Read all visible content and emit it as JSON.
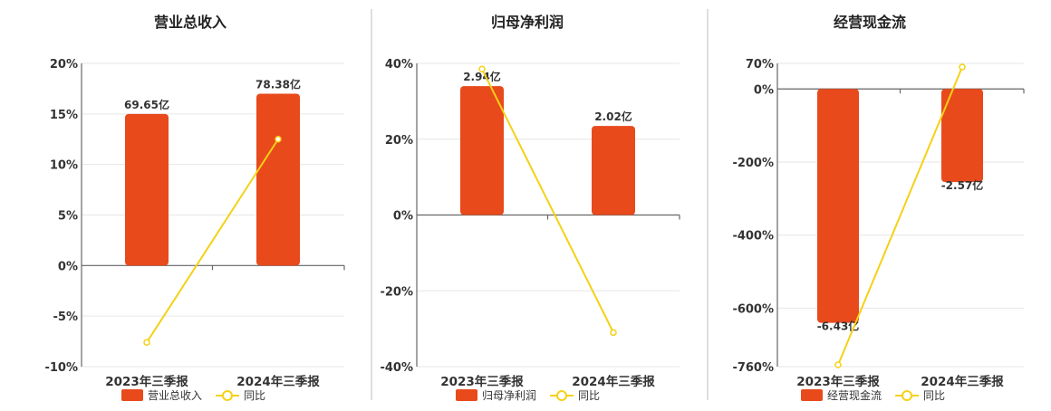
{
  "colors": {
    "bar": "#e84a1c",
    "line": "#f5d116",
    "line_marker_fill": "#ffffff"
  },
  "chart_data": [
    {
      "type": "bar",
      "title": "营业总收入",
      "categories": [
        "2023年三季报",
        "2024年三季报"
      ],
      "y_ticks": [
        "20%",
        "15%",
        "10%",
        "5%",
        "0%",
        "-5%",
        "-10%"
      ],
      "ylim": [
        -10,
        20
      ],
      "series": [
        {
          "name": "营业总收入",
          "type": "bar",
          "values": [
            15.0,
            17.0
          ],
          "labels": [
            "69.65亿",
            "78.38亿"
          ]
        },
        {
          "name": "同比",
          "type": "line",
          "values": [
            -7.6,
            12.5
          ]
        }
      ],
      "legend": [
        "营业总收入",
        "同比"
      ]
    },
    {
      "type": "bar",
      "title": "归母净利润",
      "categories": [
        "2023年三季报",
        "2024年三季报"
      ],
      "y_ticks": [
        "40%",
        "20%",
        "0%",
        "-20%",
        "-40%"
      ],
      "ylim": [
        -40,
        40
      ],
      "series": [
        {
          "name": "归母净利润",
          "type": "bar",
          "values": [
            34.0,
            23.5
          ],
          "labels": [
            "2.94亿",
            "2.02亿"
          ]
        },
        {
          "name": "同比",
          "type": "line",
          "values": [
            38.5,
            -31.0
          ]
        }
      ],
      "legend": [
        "归母净利润",
        "同比"
      ]
    },
    {
      "type": "bar",
      "title": "经营现金流",
      "categories": [
        "2023年三季报",
        "2024年三季报"
      ],
      "y_ticks": [
        "70%",
        "0%",
        "-200%",
        "-400%",
        "-600%",
        "-760%"
      ],
      "ylim": [
        -760,
        70
      ],
      "series": [
        {
          "name": "经营现金流",
          "type": "bar",
          "values": [
            -640,
            -255
          ],
          "labels": [
            "-6.43亿",
            "-2.57亿"
          ]
        },
        {
          "name": "同比",
          "type": "line",
          "values": [
            -755,
            60
          ]
        }
      ],
      "legend": [
        "经营现金流",
        "同比"
      ]
    }
  ]
}
